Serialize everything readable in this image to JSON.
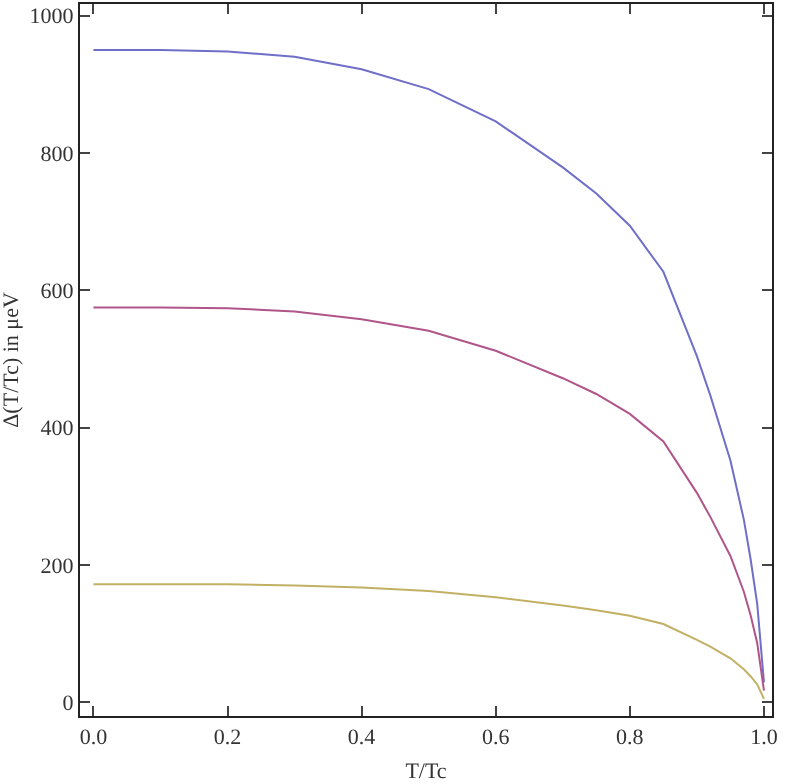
{
  "chart_data": {
    "type": "line",
    "xlabel": "T/Tc",
    "ylabel": "Δ(T/Tc) in μeV",
    "x": [
      0,
      0.1,
      0.2,
      0.3,
      0.4,
      0.5,
      0.6,
      0.7,
      0.75,
      0.8,
      0.85,
      0.9,
      0.92,
      0.95,
      0.97,
      0.98,
      0.99,
      1.0
    ],
    "series": [
      {
        "color": "#6f6fc8",
        "values": [
          950,
          950,
          948,
          940,
          922,
          893,
          846,
          779,
          741,
          694,
          627,
          504,
          447,
          352,
          266,
          209,
          143,
          29
        ]
      },
      {
        "color": "#b0558a",
        "values": [
          575,
          575,
          574,
          569,
          558,
          541,
          512,
          472,
          449,
          420,
          380,
          305,
          270,
          213,
          161,
          127,
          86,
          17
        ]
      },
      {
        "color": "#c2b064",
        "values": [
          172,
          172,
          172,
          170,
          167,
          162,
          153,
          141,
          134,
          126,
          114,
          91,
          81,
          64,
          48,
          38,
          26,
          5
        ]
      }
    ],
    "xlim": [
      -0.02,
      1.012
    ],
    "ylim": [
      -20,
      1017
    ],
    "xticks": [
      {
        "value": 0,
        "label": "0.0"
      },
      0.2,
      0.4,
      0.6,
      0.8,
      {
        "value": 1,
        "label": "1.0"
      }
    ],
    "yticks": [
      0,
      200,
      400,
      600,
      800,
      1000
    ],
    "grid": false,
    "marker": "none",
    "line_style": "solid"
  }
}
